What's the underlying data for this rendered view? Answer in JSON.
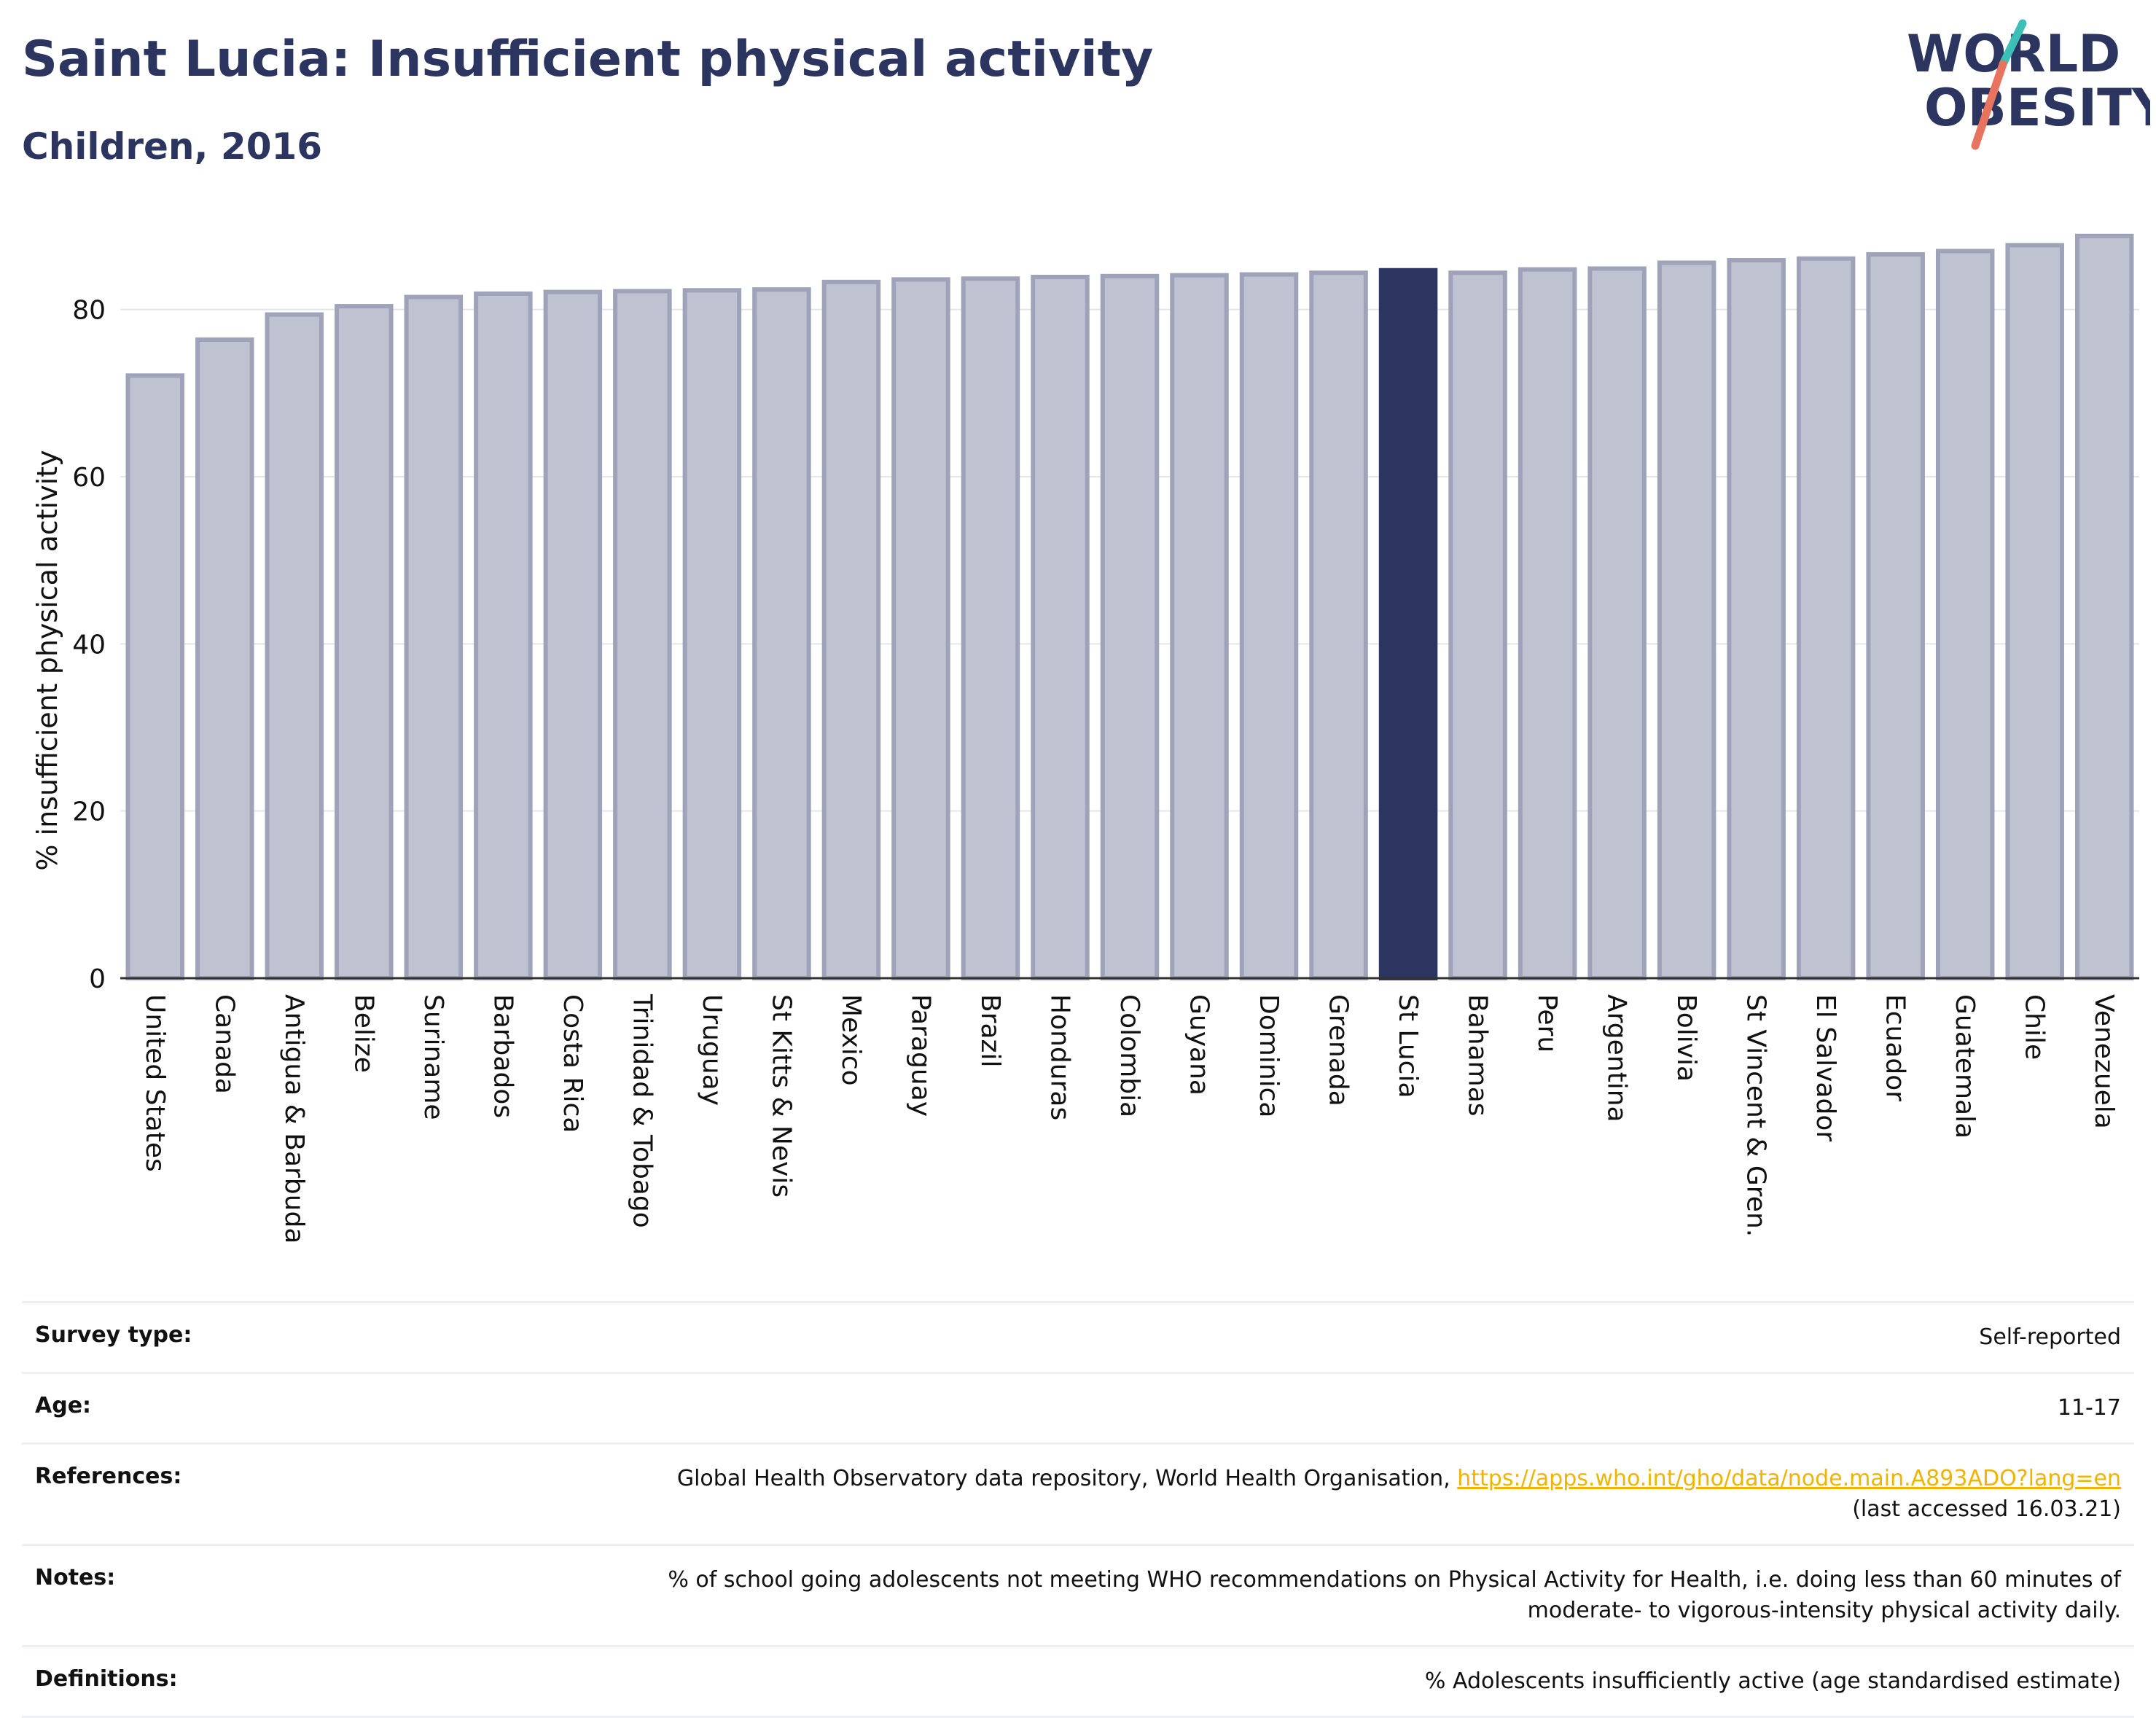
{
  "header": {
    "title": "Saint Lucia: Insufficient physical activity",
    "subtitle": "Children, 2016"
  },
  "logo": {
    "line1": "WORLD",
    "line2": "OBESITY",
    "colors": {
      "text": "#2b3560",
      "slash_teal": "#3bbfb6",
      "slash_coral": "#e8735f"
    }
  },
  "chart_data": {
    "type": "bar",
    "ylabel": "% insufficient physical activity",
    "xlabel": "",
    "ylim": [
      0,
      90
    ],
    "yticks": [
      0,
      20,
      40,
      60,
      80
    ],
    "grid": true,
    "highlight": "St Lucia",
    "colors": {
      "bar": "#bfc2d0",
      "bar_edge": "#9ea3b9",
      "highlight": "#2b3560"
    },
    "categories": [
      "United States",
      "Canada",
      "Antigua & Barbuda",
      "Belize",
      "Suriname",
      "Barbados",
      "Costa Rica",
      "Trinidad & Tobago",
      "Uruguay",
      "St Kitts & Nevis",
      "Mexico",
      "Paraguay",
      "Brazil",
      "Honduras",
      "Colombia",
      "Guyana",
      "Dominica",
      "Grenada",
      "St Lucia",
      "Bahamas",
      "Peru",
      "Argentina",
      "Bolivia",
      "St Vincent & Gren.",
      "El Salvador",
      "Ecuador",
      "Guatemala",
      "Chile",
      "Venezuela"
    ],
    "values": [
      72.1,
      76.4,
      79.4,
      80.4,
      81.5,
      81.9,
      82.1,
      82.2,
      82.3,
      82.4,
      83.3,
      83.6,
      83.7,
      83.9,
      84.0,
      84.1,
      84.2,
      84.4,
      84.7,
      84.4,
      84.8,
      84.9,
      85.6,
      85.9,
      86.1,
      86.6,
      87.0,
      87.7,
      88.8
    ]
  },
  "info": {
    "survey": {
      "label": "Survey type:",
      "value": "Self-reported"
    },
    "age": {
      "label": "Age:",
      "value": "11-17"
    },
    "references": {
      "label": "References:",
      "text": "Global Health Observatory data repository, World Health Organisation, ",
      "link": "https://apps.who.int/gho/data/node.main.A893ADO?lang=en",
      "accessed": "(last accessed 16.03.21)"
    },
    "notes": {
      "label": "Notes:",
      "line1": "% of school going adolescents not meeting WHO recommendations on Physical Activity for Health, i.e. doing less than 60 minutes of",
      "line2": "moderate- to vigorous-intensity physical activity daily."
    },
    "definitions": {
      "label": "Definitions:",
      "value": "% Adolescents insufficiently active (age standardised estimate)"
    }
  }
}
